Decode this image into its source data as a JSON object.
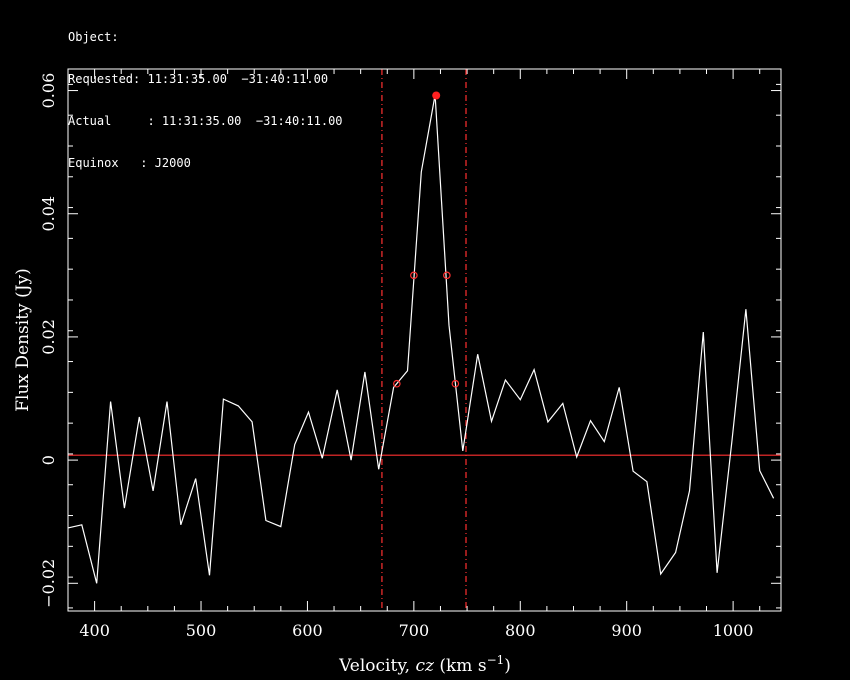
{
  "header": {
    "object_line": "Object:",
    "requested_line": "Requested: 11:31:35.00  −31:40:11.00",
    "actual_line": "Actual     : 11:31:35.00  −31:40:11.00",
    "equinox_line": "Equinox   : J2000"
  },
  "chart_data": {
    "type": "line",
    "title": "",
    "xlabel_main": "Velocity, ",
    "xlabel_italic": "cz",
    "xlabel_unit": " (km s",
    "xlabel_exp": "−1",
    "xlabel_close": ")",
    "ylabel": "Flux Density (Jy)",
    "xlim": [
      375,
      1045
    ],
    "ylim": [
      -0.0245,
      0.0635
    ],
    "xticks": [
      400,
      500,
      600,
      700,
      800,
      900,
      1000
    ],
    "yticks": [
      -0.02,
      0,
      0.02,
      0.04,
      0.06
    ],
    "ytick_labels": [
      "−0.02",
      "0",
      "0.02",
      "0.04",
      "0.06"
    ],
    "grid": false,
    "series": [
      {
        "color": "#ffffff",
        "x": [
          375,
          388,
          402,
          415,
          428,
          442,
          455,
          468,
          481,
          495,
          508,
          521,
          535,
          548,
          561,
          575,
          588,
          601,
          614,
          628,
          641,
          654,
          667,
          681,
          694,
          707,
          720,
          733,
          746,
          760,
          773,
          786,
          800,
          813,
          826,
          840,
          853,
          866,
          879,
          893,
          906,
          919,
          932,
          946,
          959,
          972,
          985,
          999,
          1012,
          1025,
          1038
        ],
        "y": [
          -0.011,
          -0.0105,
          -0.02,
          0.0095,
          -0.0078,
          0.007,
          -0.005,
          0.0095,
          -0.0105,
          -0.003,
          -0.0187,
          0.0099,
          0.0088,
          0.0062,
          -0.0098,
          -0.0108,
          0.0025,
          0.0078,
          0.0003,
          0.0114,
          0.0,
          0.0143,
          -0.0015,
          0.0118,
          0.0145,
          0.0468,
          0.0593,
          0.0219,
          0.0015,
          0.0172,
          0.0063,
          0.013,
          0.0098,
          0.0147,
          0.0062,
          0.0092,
          0.0005,
          0.0064,
          0.003,
          0.0118,
          -0.0018,
          -0.0035,
          -0.0185,
          -0.015,
          -0.005,
          0.0208,
          -0.0183,
          0.0032,
          0.0245,
          -0.0017,
          -0.0062
        ]
      }
    ],
    "baseline": {
      "y": 0.0008,
      "color": "#ff3030"
    },
    "vlines": [
      {
        "x": 670,
        "color": "#ff3030"
      },
      {
        "x": 749,
        "color": "#ff3030"
      }
    ],
    "peak_marker": {
      "x": 721,
      "y": 0.0592,
      "color": "#ff2020"
    },
    "width_markers": [
      {
        "x": 684,
        "y": 0.0124
      },
      {
        "x": 700,
        "y": 0.03
      },
      {
        "x": 731,
        "y": 0.03
      },
      {
        "x": 739,
        "y": 0.0124
      }
    ],
    "colors": {
      "axes": "#ffffff",
      "data": "#ffffff",
      "overlay": "#ff3030"
    }
  }
}
